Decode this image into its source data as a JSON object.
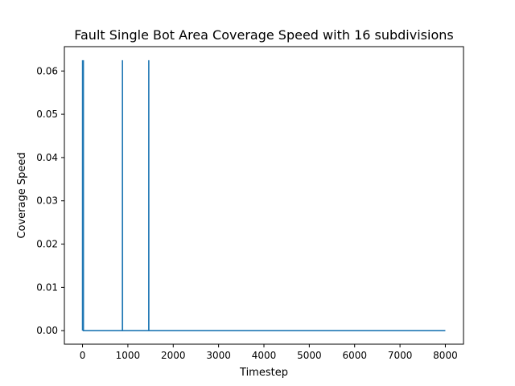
{
  "chart_data": {
    "type": "line",
    "title": "Fault Single Bot Area Coverage Speed with 16 subdivisions",
    "xlabel": "Timestep",
    "ylabel": "Coverage Speed",
    "xlim": [
      -400,
      8400
    ],
    "ylim": [
      -0.003125,
      0.065625
    ],
    "xticks": [
      0,
      1000,
      2000,
      3000,
      4000,
      5000,
      6000,
      7000,
      8000
    ],
    "xtick_labels": [
      "0",
      "1000",
      "2000",
      "3000",
      "4000",
      "5000",
      "6000",
      "7000",
      "8000"
    ],
    "yticks": [
      0.0,
      0.01,
      0.02,
      0.03,
      0.04,
      0.05,
      0.06
    ],
    "ytick_labels": [
      "0.00",
      "0.01",
      "0.02",
      "0.03",
      "0.04",
      "0.05",
      "0.06"
    ],
    "grid": false,
    "legend": "none",
    "series": [
      {
        "color": "#1f77b4",
        "x": [
          0,
          1,
          2,
          3,
          4,
          5,
          6,
          7,
          8,
          9,
          10,
          11,
          12,
          13,
          14,
          15,
          16,
          17,
          18,
          19,
          20,
          880,
          881,
          882,
          1460,
          1461,
          1462,
          8000
        ],
        "y": [
          0,
          0.0625,
          0,
          0.0625,
          0,
          0.0625,
          0,
          0.0625,
          0,
          0.0625,
          0,
          0.0625,
          0,
          0.0625,
          0,
          0.0625,
          0,
          0.0625,
          0,
          0.0625,
          0,
          0,
          0.0625,
          0,
          0,
          0.0625,
          0,
          0
        ]
      }
    ]
  }
}
